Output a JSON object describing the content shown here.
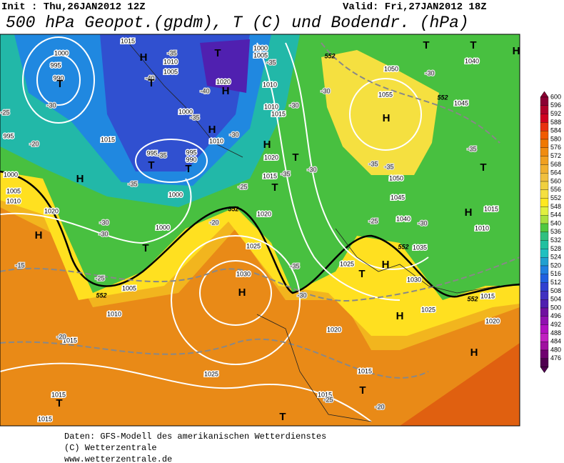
{
  "header": {
    "init": "Init : Thu,26JAN2012 12Z",
    "valid": "Valid: Fri,27JAN2012 18Z",
    "title": "500 hPa Geopot.(gpdm), T (C) und Bodendr. (hPa)"
  },
  "colorbar": {
    "values": [
      600,
      596,
      592,
      588,
      584,
      580,
      576,
      572,
      568,
      564,
      560,
      556,
      552,
      548,
      544,
      540,
      536,
      532,
      528,
      524,
      520,
      516,
      512,
      508,
      504,
      500,
      496,
      492,
      488,
      484,
      480,
      476
    ],
    "colors": [
      "#8b0033",
      "#b0002a",
      "#d00020",
      "#e83010",
      "#f05a00",
      "#f07800",
      "#f08c10",
      "#f0a020",
      "#f0b030",
      "#f0c040",
      "#f0d040",
      "#f5e040",
      "#ffe820",
      "#e0f040",
      "#a8e040",
      "#50c840",
      "#30c080",
      "#20c0a0",
      "#20c0c0",
      "#20a0d0",
      "#2080e0",
      "#2060e0",
      "#3040d0",
      "#4030c0",
      "#5020b0",
      "#7010a0",
      "#9010b0",
      "#b010c0",
      "#c020c0",
      "#a010a0",
      "#700070",
      "#500050"
    ]
  },
  "map_labels": {
    "pressure": [
      "1000",
      "995",
      "990",
      "1015",
      "1010",
      "1005",
      "1020",
      "1000",
      "995",
      "995",
      "990",
      "1010",
      "1015",
      "1000",
      "1000",
      "1005",
      "1010",
      "1015",
      "1020",
      "1005",
      "1010",
      "995",
      "1000",
      "1000",
      "1005",
      "1010",
      "1010",
      "1015",
      "1020",
      "1015",
      "1020",
      "1025",
      "1030",
      "1050",
      "1055",
      "1045",
      "1040",
      "1050",
      "1045",
      "1040",
      "1035",
      "1030",
      "1025",
      "1025",
      "1015",
      "1020",
      "1015",
      "1010",
      "1020",
      "1015",
      "1015",
      "1025",
      "1015",
      "1015"
    ],
    "temperature": [
      "-35",
      "-40",
      "-40",
      "-35",
      "-30",
      "-25",
      "-20",
      "-35",
      "-30",
      "-35",
      "-35",
      "-30",
      "-30",
      "-25",
      "-20",
      "-25",
      "-35",
      "-30",
      "-30",
      "-30",
      "-35",
      "-35",
      "-30",
      "-35",
      "-30",
      "-25",
      "-30",
      "-35",
      "-15",
      "-20",
      "-25",
      "-20"
    ],
    "line552": [
      "552",
      "552",
      "552",
      "552",
      "552",
      "552"
    ],
    "centers": [
      "H",
      "T",
      "T",
      "T",
      "H",
      "H",
      "H",
      "T",
      "H",
      "T",
      "T",
      "T",
      "T",
      "H",
      "H",
      "H",
      "T",
      "T",
      "H",
      "T",
      "H",
      "H",
      "T",
      "H",
      "H",
      "T",
      "T",
      "T"
    ]
  },
  "footer": [
    "Daten: GFS-Modell des amerikanischen Wetterdienstes",
    "(C) Wetterzentrale",
    "www.wetterzentrale.de"
  ]
}
